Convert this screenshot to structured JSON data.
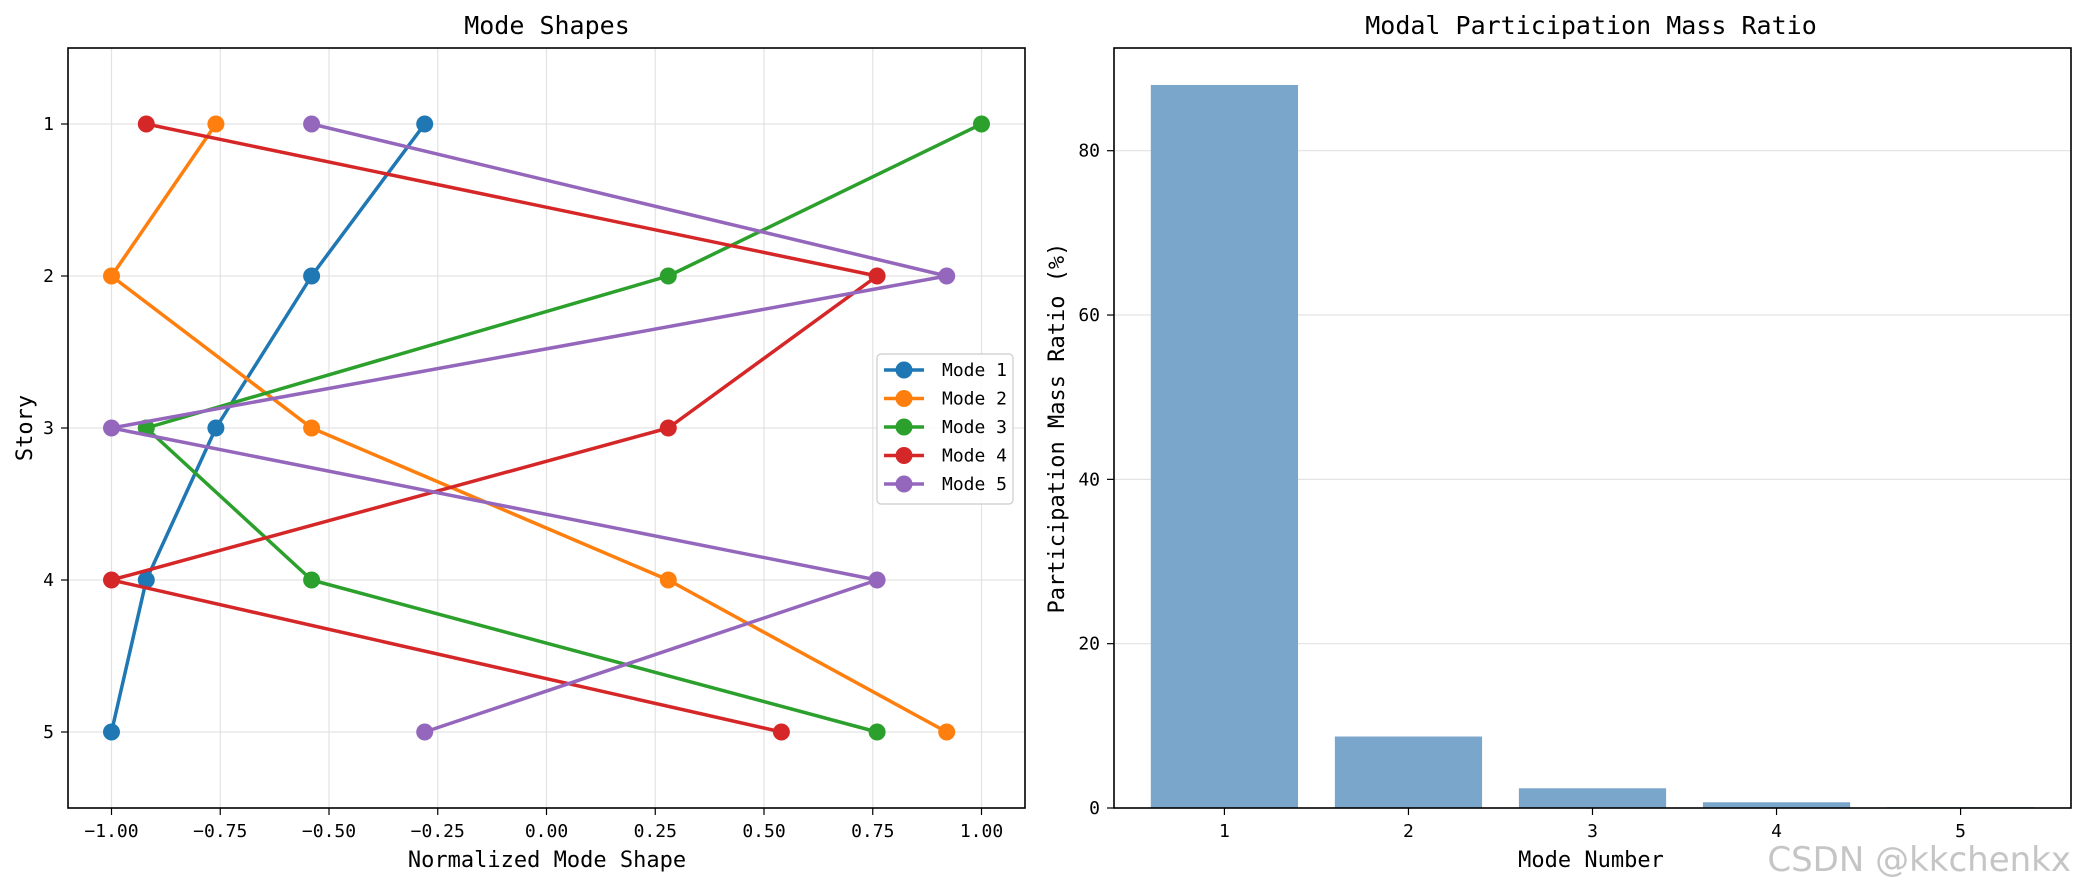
{
  "watermark": "CSDN @kkchenkx",
  "chart_data": [
    {
      "type": "line",
      "title": "Mode Shapes",
      "xlabel": "Normalized Mode Shape",
      "ylabel": "Story",
      "xlim": [
        -1.1,
        1.1
      ],
      "ylim": [
        5.5,
        0.5
      ],
      "y_inverted": true,
      "grid": true,
      "xticks": [
        -1.0,
        -0.75,
        -0.5,
        -0.25,
        0.0,
        0.25,
        0.5,
        0.75,
        1.0
      ],
      "xtick_labels": [
        "−1.00",
        "−0.75",
        "−0.50",
        "−0.25",
        "0.00",
        "0.25",
        "0.50",
        "0.75",
        "1.00"
      ],
      "yticks": [
        1,
        2,
        3,
        4,
        5
      ],
      "ytick_labels": [
        "1",
        "2",
        "3",
        "4",
        "5"
      ],
      "legend_position": "center-right",
      "stories": [
        1,
        2,
        3,
        4,
        5
      ],
      "series": [
        {
          "name": "Mode 1",
          "color": "#1f77b4",
          "x": [
            -0.28,
            -0.54,
            -0.76,
            -0.92,
            -1.0
          ]
        },
        {
          "name": "Mode 2",
          "color": "#ff7f0e",
          "x": [
            -0.76,
            -1.0,
            -0.54,
            0.28,
            0.92
          ]
        },
        {
          "name": "Mode 3",
          "color": "#2ca02c",
          "x": [
            1.0,
            0.28,
            -0.92,
            -0.54,
            0.76
          ]
        },
        {
          "name": "Mode 4",
          "color": "#d62728",
          "x": [
            -0.92,
            0.76,
            0.28,
            -1.0,
            0.54
          ]
        },
        {
          "name": "Mode 5",
          "color": "#9467bd",
          "x": [
            -0.54,
            0.92,
            -1.0,
            0.76,
            -0.28
          ]
        }
      ]
    },
    {
      "type": "bar",
      "title": "Modal Participation Mass Ratio",
      "xlabel": "Mode Number",
      "ylabel": "Participation Mass Ratio (%)",
      "ylim": [
        0,
        92.5
      ],
      "grid": true,
      "color": "#7ba6cb",
      "categories": [
        "1",
        "2",
        "3",
        "4",
        "5"
      ],
      "values": [
        88.0,
        8.7,
        2.4,
        0.7,
        0.1
      ],
      "yticks": [
        0,
        20,
        40,
        60,
        80
      ],
      "ytick_labels": [
        "0",
        "20",
        "40",
        "60",
        "80"
      ]
    }
  ]
}
